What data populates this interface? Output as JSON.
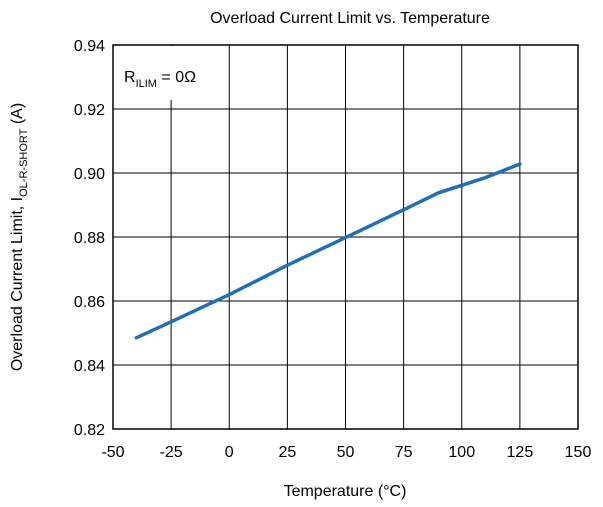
{
  "chart_data": {
    "type": "line",
    "title": "Overload Current Limit vs. Temperature",
    "xlabel": "Temperature (°C)",
    "ylabel": {
      "main": "Overload Current Limit, I",
      "subscript": "OL-R-SHORT",
      "suffix": " (A)"
    },
    "annotation": {
      "main": "R",
      "subscript": "ILIM",
      "suffix": " = 0Ω"
    },
    "xlim": [
      -50,
      150
    ],
    "ylim": [
      0.82,
      0.94
    ],
    "xticks": [
      "-50",
      "-25",
      "0",
      "25",
      "50",
      "75",
      "100",
      "125",
      "150"
    ],
    "yticks": [
      "0.82",
      "0.84",
      "0.86",
      "0.88",
      "0.90",
      "0.92",
      "0.94"
    ],
    "grid": true,
    "line_color": "#1f6fb7",
    "series": [
      {
        "x": [
          -40,
          -25,
          0,
          25,
          50,
          75,
          90,
          110,
          125
        ],
        "y": [
          0.8485,
          0.8535,
          0.862,
          0.8712,
          0.8798,
          0.8885,
          0.8938,
          0.8985,
          0.9028
        ]
      }
    ]
  }
}
